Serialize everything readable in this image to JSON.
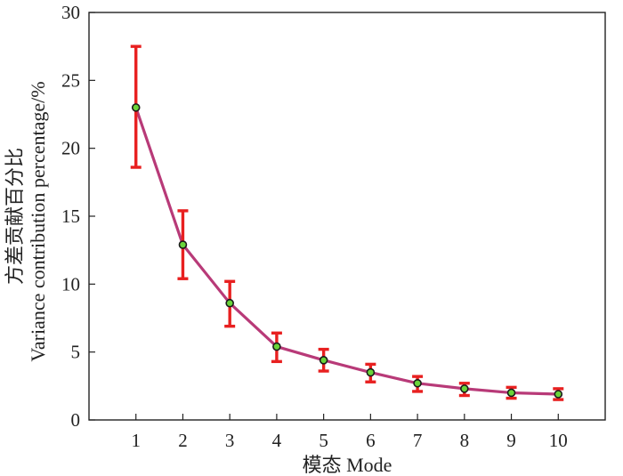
{
  "chart_data": {
    "type": "line",
    "title": "",
    "xlabel": "模态 Mode",
    "ylabel_line1": "方差贡献百分比",
    "ylabel_line2": "Variance contribution percentage/%",
    "xlim": [
      0,
      11
    ],
    "ylim": [
      0,
      30
    ],
    "x_ticks": [
      "1",
      "2",
      "3",
      "4",
      "5",
      "6",
      "7",
      "8",
      "9",
      "10"
    ],
    "y_ticks": [
      "0",
      "5",
      "10",
      "15",
      "20",
      "25",
      "30"
    ],
    "grid": false,
    "series": [
      {
        "x": [
          1,
          2,
          3,
          4,
          5,
          6,
          7,
          8,
          9,
          10
        ],
        "values": [
          23.0,
          12.9,
          8.6,
          5.4,
          4.4,
          3.5,
          2.7,
          2.3,
          2.0,
          1.9
        ],
        "error_lower": [
          18.6,
          10.4,
          6.9,
          4.3,
          3.6,
          2.8,
          2.1,
          1.8,
          1.6,
          1.5
        ],
        "error_upper": [
          27.5,
          15.4,
          10.2,
          6.4,
          5.2,
          4.1,
          3.2,
          2.7,
          2.4,
          2.3
        ],
        "line_color": "#b83a78",
        "marker_color": "#6ad43a",
        "marker_edge_color": "#1a1a1a",
        "error_color": "#e82020"
      }
    ]
  }
}
